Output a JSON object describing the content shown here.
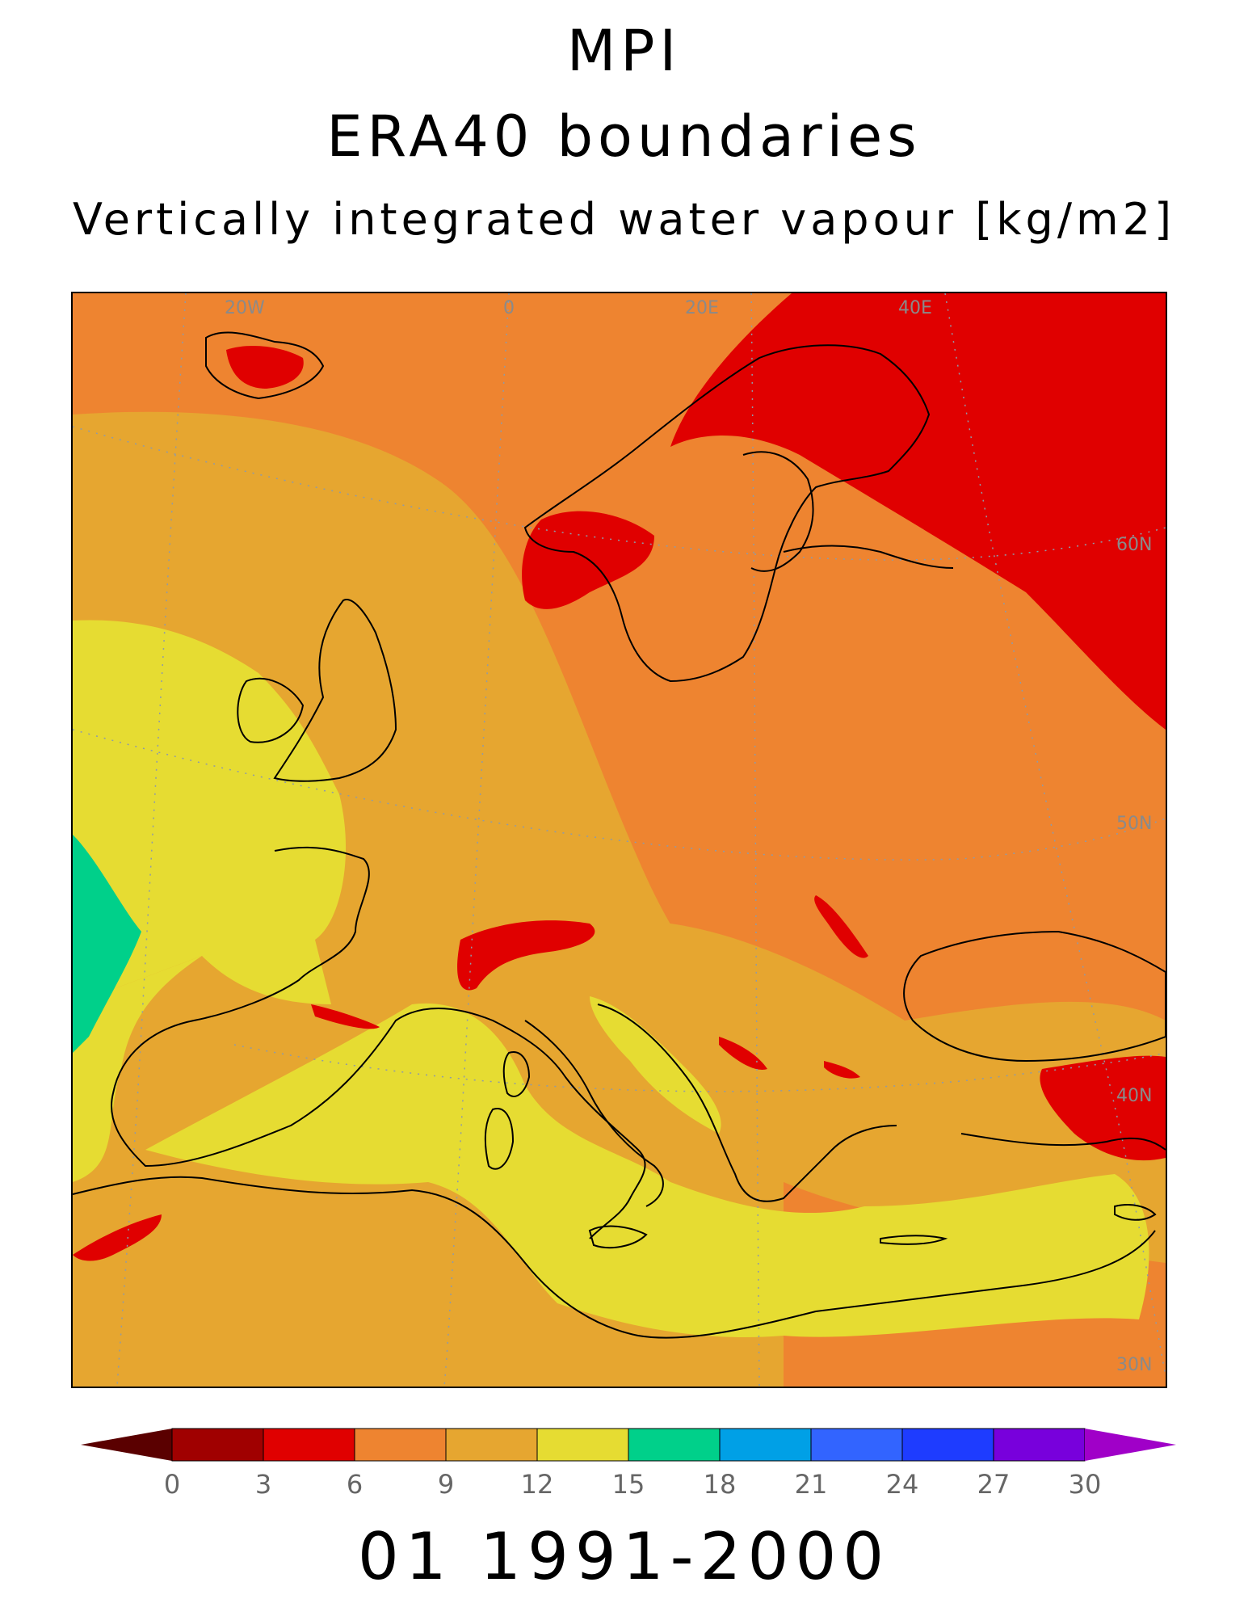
{
  "header": {
    "title": "MPI",
    "subtitle": "ERA40 boundaries",
    "variable": "Vertically integrated water vapour [kg/m2]"
  },
  "map": {
    "grid_labels": {
      "lon": [
        "20W",
        "0",
        "20E",
        "40E"
      ],
      "lat": [
        "60N",
        "50N",
        "40N",
        "30N"
      ]
    },
    "colors": {
      "red": "#e00000",
      "orange": "#ee8430",
      "amber": "#e6a630",
      "yellow": "#e6dc32",
      "green": "#00d08a"
    }
  },
  "colorbar": {
    "levels": [
      "0",
      "3",
      "6",
      "9",
      "12",
      "15",
      "18",
      "21",
      "24",
      "27",
      "30"
    ],
    "colors": [
      "#a00000",
      "#e00000",
      "#ee8430",
      "#e6a630",
      "#e6dc32",
      "#00d08a",
      "#00a0e6",
      "#3264ff",
      "#1e3cff",
      "#7800dc"
    ],
    "under_color": "#5a0000",
    "over_color": "#a000c8"
  },
  "footer": {
    "period": "01 1991-2000"
  }
}
